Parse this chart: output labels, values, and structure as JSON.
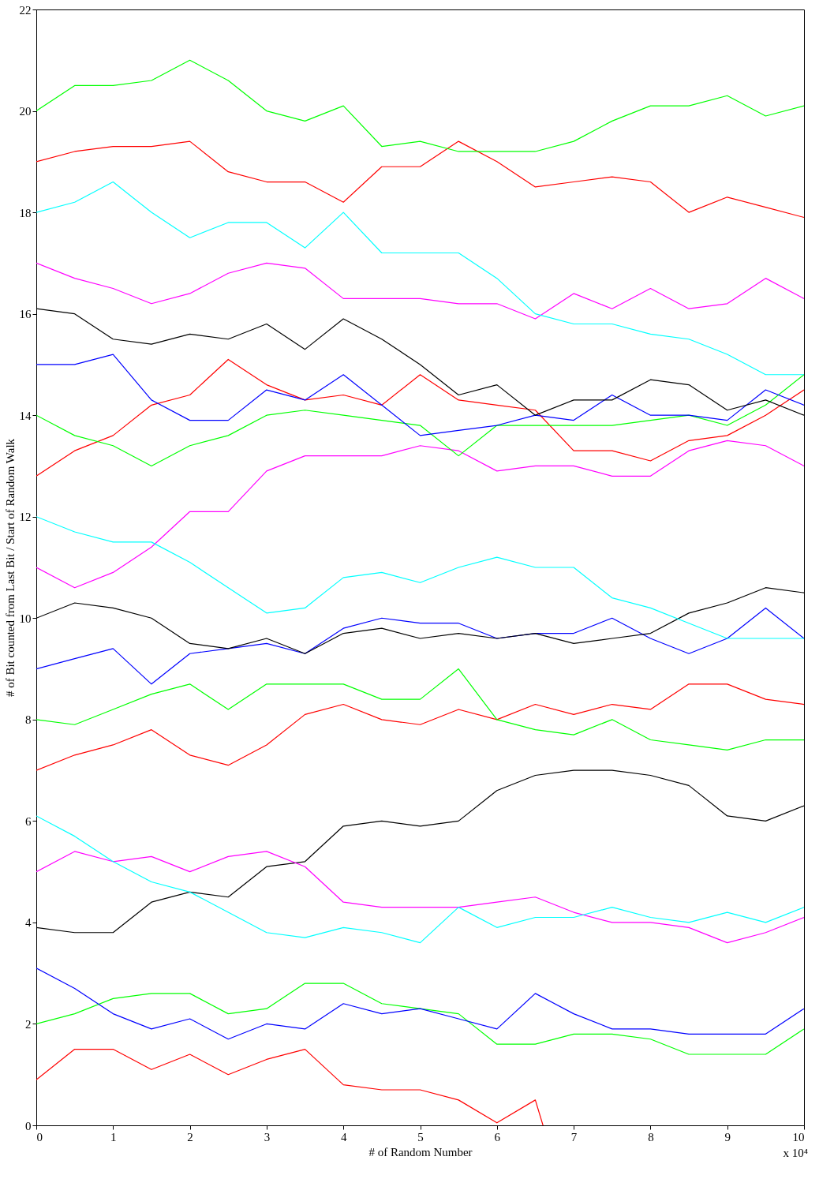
{
  "chart_data": {
    "type": "line",
    "xlabel": "# of Random Number",
    "ylabel": "# of Bit counted from Last Bit / Start of Random Walk",
    "annotations": [
      "x 10⁴"
    ],
    "x": [
      0,
      0.5,
      1,
      1.5,
      2,
      2.5,
      3,
      3.5,
      4,
      4.5,
      5,
      5.5,
      6,
      6.5,
      7,
      7.5,
      8,
      8.5,
      9,
      9.5,
      10
    ],
    "xlim": [
      0,
      10
    ],
    "xticks": [
      0,
      1,
      2,
      3,
      4,
      5,
      6,
      7,
      8,
      9,
      10
    ],
    "ylim": [
      0,
      22
    ],
    "yticks": [
      0,
      2,
      4,
      6,
      8,
      10,
      12,
      14,
      16,
      18,
      20,
      22
    ],
    "series": [
      {
        "color": "#ff0000",
        "x": [
          0,
          0.5,
          1,
          1.5,
          2,
          2.5,
          3,
          3.5,
          4,
          4.5,
          5,
          5.5,
          6,
          6.5,
          6.6
        ],
        "values": [
          0.9,
          1.5,
          1.5,
          1.1,
          1.4,
          1.0,
          1.3,
          1.5,
          0.8,
          0.7,
          0.7,
          0.5,
          0.05,
          0.5,
          0.0
        ]
      },
      {
        "color": "#00ff00",
        "values": [
          2.0,
          2.2,
          2.5,
          2.6,
          2.6,
          2.2,
          2.3,
          2.8,
          2.8,
          2.4,
          2.3,
          2.2,
          1.6,
          1.6,
          1.8,
          1.8,
          1.7,
          1.4,
          1.4,
          1.4,
          1.9
        ]
      },
      {
        "color": "#0000ff",
        "values": [
          3.1,
          2.7,
          2.2,
          1.9,
          2.1,
          1.7,
          2.0,
          1.9,
          2.4,
          2.2,
          2.3,
          2.1,
          1.9,
          2.6,
          2.2,
          1.9,
          1.9,
          1.8,
          1.8,
          1.8,
          2.3
        ]
      },
      {
        "color": "#000000",
        "values": [
          3.9,
          3.8,
          3.8,
          4.4,
          4.6,
          4.5,
          5.1,
          5.2,
          5.9,
          6.0,
          5.9,
          6.0,
          6.6,
          6.9,
          7.0,
          7.0,
          6.9,
          6.7,
          6.1,
          6.0,
          6.3
        ]
      },
      {
        "color": "#ff00ff",
        "values": [
          5.0,
          5.4,
          5.2,
          5.3,
          5.0,
          5.3,
          5.4,
          5.1,
          4.4,
          4.3,
          4.3,
          4.3,
          4.4,
          4.5,
          4.2,
          4.0,
          4.0,
          3.9,
          3.6,
          3.8,
          4.1
        ]
      },
      {
        "color": "#00ffff",
        "values": [
          6.1,
          5.7,
          5.2,
          4.8,
          4.6,
          4.2,
          3.8,
          3.7,
          3.9,
          3.8,
          3.6,
          4.3,
          3.9,
          4.1,
          4.1,
          4.3,
          4.1,
          4.0,
          4.2,
          4.0,
          4.3
        ]
      },
      {
        "color": "#ff0000",
        "values": [
          7.0,
          7.3,
          7.5,
          7.8,
          7.3,
          7.1,
          7.5,
          8.1,
          8.3,
          8.0,
          7.9,
          8.2,
          8.0,
          8.3,
          8.1,
          8.3,
          8.2,
          8.7,
          8.7,
          8.4,
          8.3
        ]
      },
      {
        "color": "#00ff00",
        "values": [
          8.0,
          7.9,
          8.2,
          8.5,
          8.7,
          8.2,
          8.7,
          8.7,
          8.7,
          8.4,
          8.4,
          9.0,
          8.0,
          7.8,
          7.7,
          8.0,
          7.6,
          7.5,
          7.4,
          7.6,
          7.6
        ]
      },
      {
        "color": "#0000ff",
        "values": [
          9.0,
          9.2,
          9.4,
          8.7,
          9.3,
          9.4,
          9.5,
          9.3,
          9.8,
          10.0,
          9.9,
          9.9,
          9.6,
          9.7,
          9.7,
          10.0,
          9.6,
          9.3,
          9.6,
          10.2,
          9.6
        ]
      },
      {
        "color": "#000000",
        "values": [
          10.0,
          10.3,
          10.2,
          10.0,
          9.5,
          9.4,
          9.6,
          9.3,
          9.7,
          9.8,
          9.6,
          9.7,
          9.6,
          9.7,
          9.5,
          9.6,
          9.7,
          10.1,
          10.3,
          10.6,
          10.5
        ]
      },
      {
        "color": "#ff00ff",
        "values": [
          11.0,
          10.6,
          10.9,
          11.4,
          12.1,
          12.1,
          12.9,
          13.2,
          13.2,
          13.2,
          13.4,
          13.3,
          12.9,
          13.0,
          13.0,
          12.8,
          12.8,
          13.3,
          13.5,
          13.4,
          13.0
        ]
      },
      {
        "color": "#00ffff",
        "values": [
          12.0,
          11.7,
          11.5,
          11.5,
          11.1,
          10.6,
          10.1,
          10.2,
          10.8,
          10.9,
          10.7,
          11.0,
          11.2,
          11.0,
          11.0,
          10.4,
          10.2,
          9.9,
          9.6,
          9.6,
          9.6
        ]
      },
      {
        "color": "#ff0000",
        "values": [
          12.8,
          13.3,
          13.6,
          14.2,
          14.4,
          15.1,
          14.6,
          14.3,
          14.4,
          14.2,
          14.8,
          14.3,
          14.2,
          14.1,
          13.3,
          13.3,
          13.1,
          13.5,
          13.6,
          14.0,
          14.5
        ]
      },
      {
        "color": "#00ff00",
        "values": [
          14.0,
          13.6,
          13.4,
          13.0,
          13.4,
          13.6,
          14.0,
          14.1,
          14.0,
          13.9,
          13.8,
          13.2,
          13.8,
          13.8,
          13.8,
          13.8,
          13.9,
          14.0,
          13.8,
          14.2,
          14.8
        ]
      },
      {
        "color": "#0000ff",
        "values": [
          15.0,
          15.0,
          15.2,
          14.3,
          13.9,
          13.9,
          14.5,
          14.3,
          14.8,
          14.2,
          13.6,
          13.7,
          13.8,
          14.0,
          13.9,
          14.4,
          14.0,
          14.0,
          13.9,
          14.5,
          14.2
        ]
      },
      {
        "color": "#000000",
        "values": [
          16.1,
          16.0,
          15.5,
          15.4,
          15.6,
          15.5,
          15.8,
          15.3,
          15.9,
          15.5,
          15.0,
          14.4,
          14.6,
          14.0,
          14.3,
          14.3,
          14.7,
          14.6,
          14.1,
          14.3,
          14.0
        ]
      },
      {
        "color": "#ff00ff",
        "values": [
          17.0,
          16.7,
          16.5,
          16.2,
          16.4,
          16.8,
          17.0,
          16.9,
          16.3,
          16.3,
          16.3,
          16.2,
          16.2,
          15.9,
          16.4,
          16.1,
          16.5,
          16.1,
          16.2,
          16.7,
          16.3
        ]
      },
      {
        "color": "#00ffff",
        "values": [
          18.0,
          18.2,
          18.6,
          18.0,
          17.5,
          17.8,
          17.8,
          17.3,
          18.0,
          17.2,
          17.2,
          17.2,
          16.7,
          16.0,
          15.8,
          15.8,
          15.6,
          15.5,
          15.2,
          14.8,
          14.8
        ]
      },
      {
        "color": "#ff0000",
        "values": [
          19.0,
          19.2,
          19.3,
          19.3,
          19.4,
          18.8,
          18.6,
          18.6,
          18.2,
          18.9,
          18.9,
          19.4,
          19.0,
          18.5,
          18.6,
          18.7,
          18.6,
          18.0,
          18.3,
          18.1,
          17.9
        ]
      },
      {
        "color": "#00ff00",
        "values": [
          20.0,
          20.5,
          20.5,
          20.6,
          21.0,
          20.6,
          20.0,
          19.8,
          20.1,
          19.3,
          19.4,
          19.2,
          19.2,
          19.2,
          19.4,
          19.8,
          20.1,
          20.1,
          20.3,
          19.9,
          20.1
        ]
      }
    ]
  }
}
